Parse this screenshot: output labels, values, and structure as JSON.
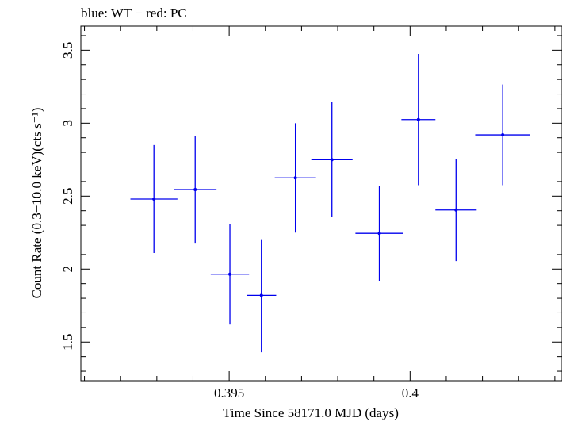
{
  "chart_data": {
    "type": "scatter",
    "title": "blue: WT − red: PC",
    "xlabel": "Time Since 58171.0 MJD (days)",
    "ylabel": "Count Rate (0.3−10.0 keV)(cts s⁻¹)",
    "xlim": [
      0.3909,
      0.4042
    ],
    "ylim": [
      1.235,
      3.665
    ],
    "x_ticks": [
      0.395,
      0.4
    ],
    "x_tick_labels": [
      "0.395",
      "0.4"
    ],
    "y_ticks": [
      1.5,
      2,
      2.5,
      3,
      3.5
    ],
    "y_tick_labels": [
      "1.5",
      "2",
      "2.5",
      "3",
      "3.5"
    ],
    "grid": false,
    "series": [
      {
        "name": "WT",
        "color": "#0000ee",
        "points": [
          {
            "x": 0.39292,
            "xerr": 0.00065,
            "y": 2.48,
            "yerr_lo": 0.37,
            "yerr_hi": 0.37
          },
          {
            "x": 0.39406,
            "xerr": 0.00059,
            "y": 2.545,
            "yerr_lo": 0.365,
            "yerr_hi": 0.365
          },
          {
            "x": 0.39502,
            "xerr": 0.00053,
            "y": 1.965,
            "yerr_lo": 0.345,
            "yerr_hi": 0.345
          },
          {
            "x": 0.39589,
            "xerr": 0.00041,
            "y": 1.82,
            "yerr_lo": 0.39,
            "yerr_hi": 0.385
          },
          {
            "x": 0.39683,
            "xerr": 0.00057,
            "y": 2.625,
            "yerr_lo": 0.375,
            "yerr_hi": 0.375
          },
          {
            "x": 0.39784,
            "xerr": 0.00057,
            "y": 2.75,
            "yerr_lo": 0.395,
            "yerr_hi": 0.395
          },
          {
            "x": 0.39915,
            "xerr": 0.00066,
            "y": 2.245,
            "yerr_lo": 0.325,
            "yerr_hi": 0.325
          },
          {
            "x": 0.40023,
            "xerr": 0.00047,
            "y": 3.025,
            "yerr_lo": 0.45,
            "yerr_hi": 0.45
          },
          {
            "x": 0.40127,
            "xerr": 0.00057,
            "y": 2.405,
            "yerr_lo": 0.35,
            "yerr_hi": 0.35
          },
          {
            "x": 0.40256,
            "xerr": 0.00076,
            "y": 2.92,
            "yerr_lo": 0.345,
            "yerr_hi": 0.345
          }
        ]
      }
    ]
  }
}
